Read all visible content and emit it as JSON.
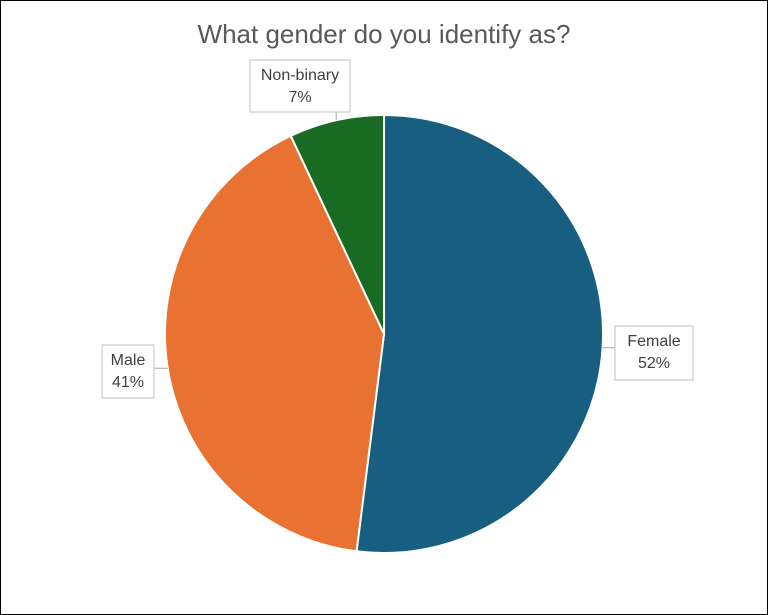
{
  "chart_data": {
    "type": "pie",
    "title": "What gender do you identify as?",
    "categories": [
      "Female",
      "Male",
      "Non-binary"
    ],
    "values": [
      52,
      41,
      7
    ],
    "value_labels": [
      "52%",
      "41%",
      "7%"
    ],
    "colors": [
      "#175e80",
      "#e97132",
      "#196b24"
    ]
  }
}
